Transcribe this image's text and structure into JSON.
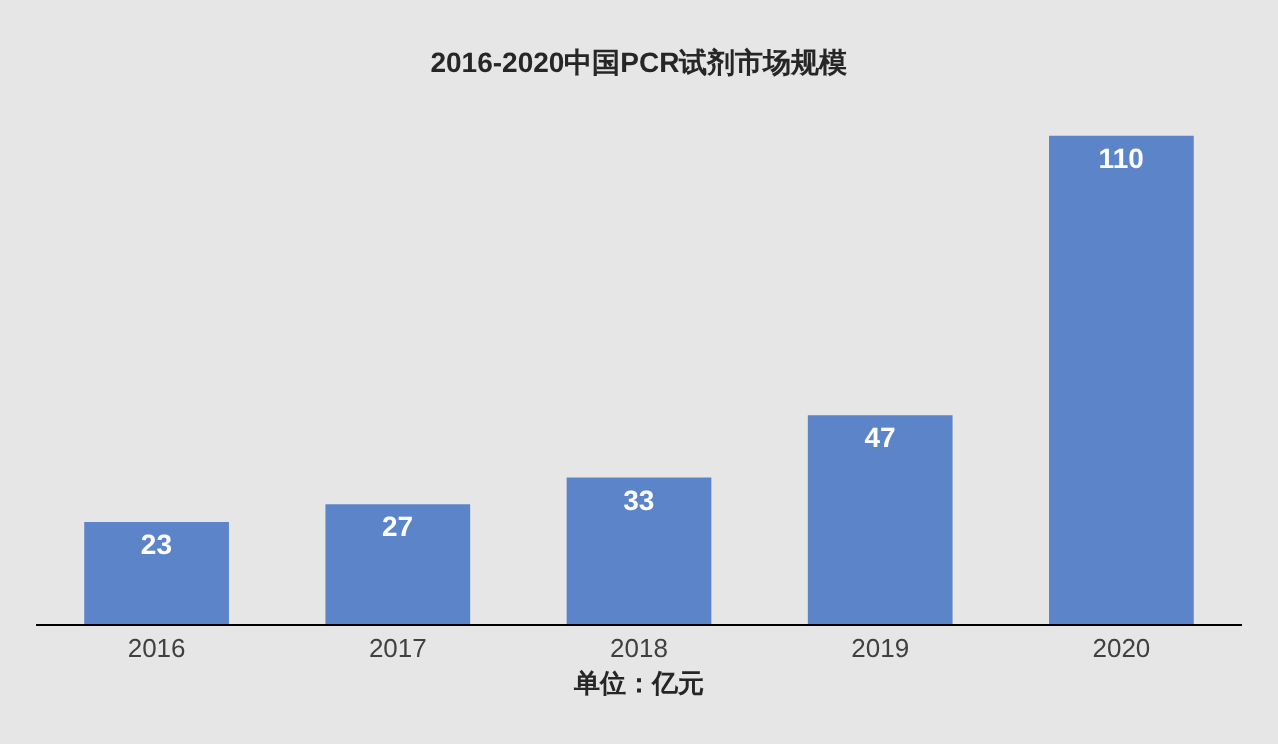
{
  "chart_data": {
    "type": "bar",
    "title": "2016-2020中国PCR试剂市场规模",
    "xlabel": "单位：亿元",
    "categories": [
      "2016",
      "2017",
      "2018",
      "2019",
      "2020"
    ],
    "values": [
      23,
      27,
      33,
      47,
      110
    ],
    "color": "#5b84c9",
    "data_labels": true,
    "grid": false,
    "legend": false
  }
}
